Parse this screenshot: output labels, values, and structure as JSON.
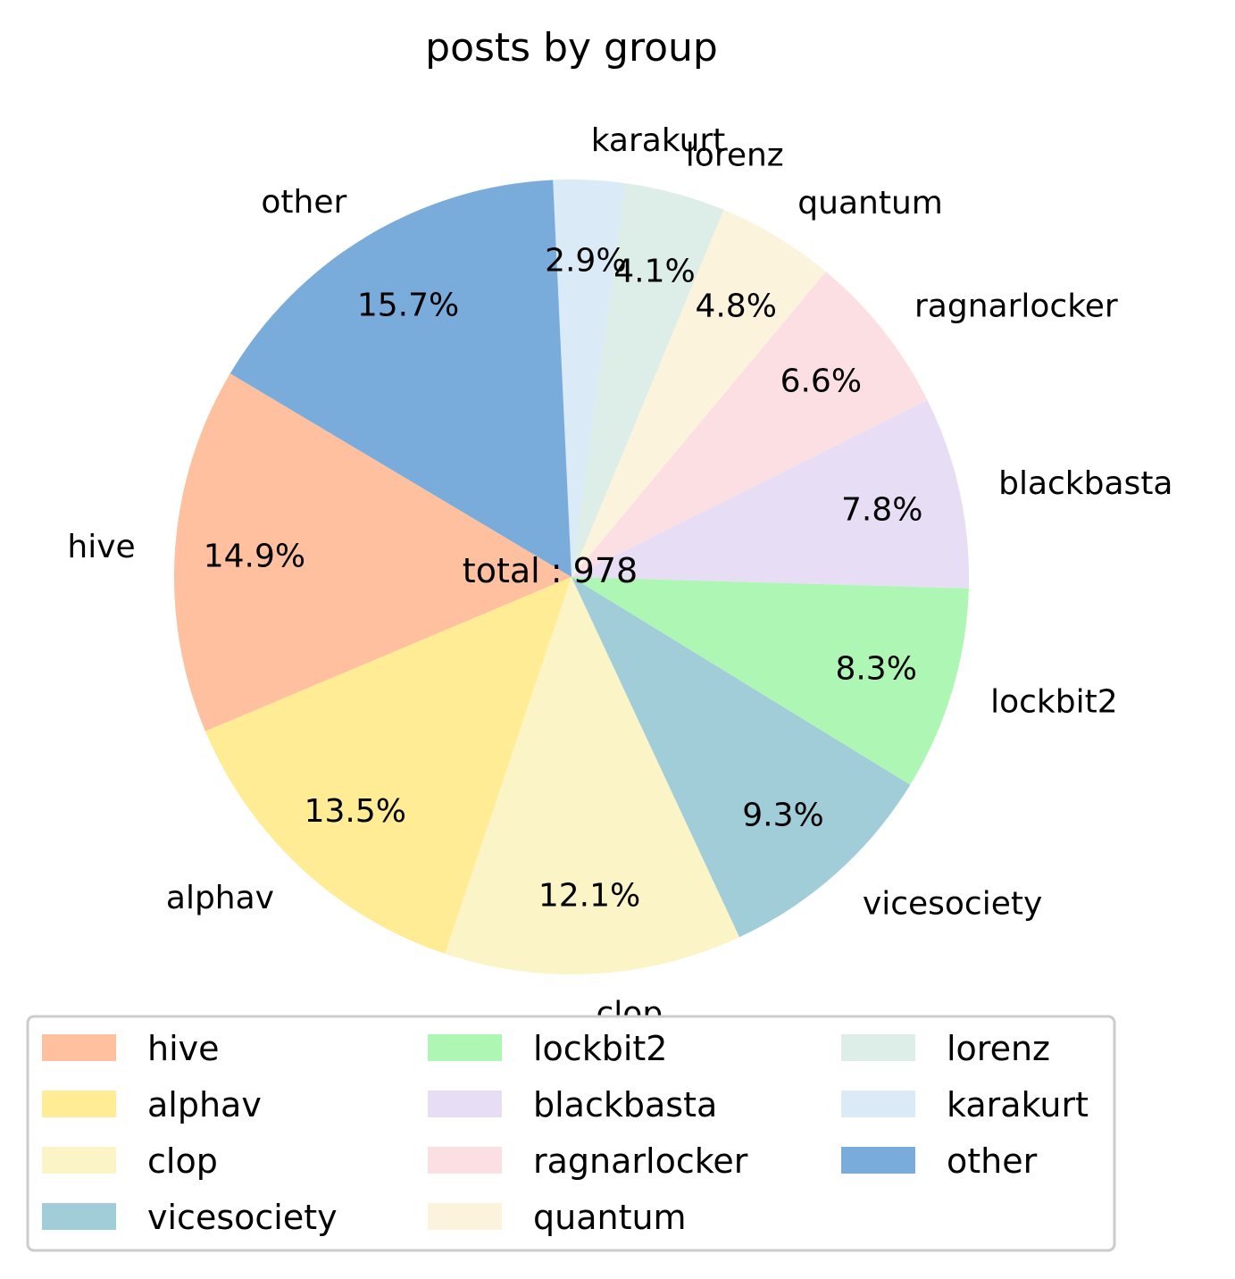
{
  "chart_data": {
    "type": "pie",
    "title": "posts by group",
    "center_text": "total : 978",
    "slices": [
      {
        "label": "hive",
        "pct": 14.9,
        "pct_label": "14.9%",
        "color": "#fec09e"
      },
      {
        "label": "alphav",
        "pct": 13.5,
        "pct_label": "13.5%",
        "color": "#ffec94"
      },
      {
        "label": "clop",
        "pct": 12.1,
        "pct_label": "12.1%",
        "color": "#fbf4c6"
      },
      {
        "label": "vicesociety",
        "pct": 9.3,
        "pct_label": "9.3%",
        "color": "#a0cdd8"
      },
      {
        "label": "lockbit2",
        "pct": 8.3,
        "pct_label": "8.3%",
        "color": "#aef6b4"
      },
      {
        "label": "blackbasta",
        "pct": 7.8,
        "pct_label": "7.8%",
        "color": "#e7def5"
      },
      {
        "label": "ragnarlocker",
        "pct": 6.6,
        "pct_label": "6.6%",
        "color": "#fcdfe2"
      },
      {
        "label": "quantum",
        "pct": 4.8,
        "pct_label": "4.8%",
        "color": "#fcf3dc"
      },
      {
        "label": "lorenz",
        "pct": 4.1,
        "pct_label": "4.1%",
        "color": "#ddede8"
      },
      {
        "label": "karakurt",
        "pct": 2.9,
        "pct_label": "2.9%",
        "color": "#daeaf7"
      },
      {
        "label": "other",
        "pct": 15.7,
        "pct_label": "15.7%",
        "color": "#79acdb"
      }
    ],
    "legend_position": "bottom",
    "legend_columns": 3
  }
}
